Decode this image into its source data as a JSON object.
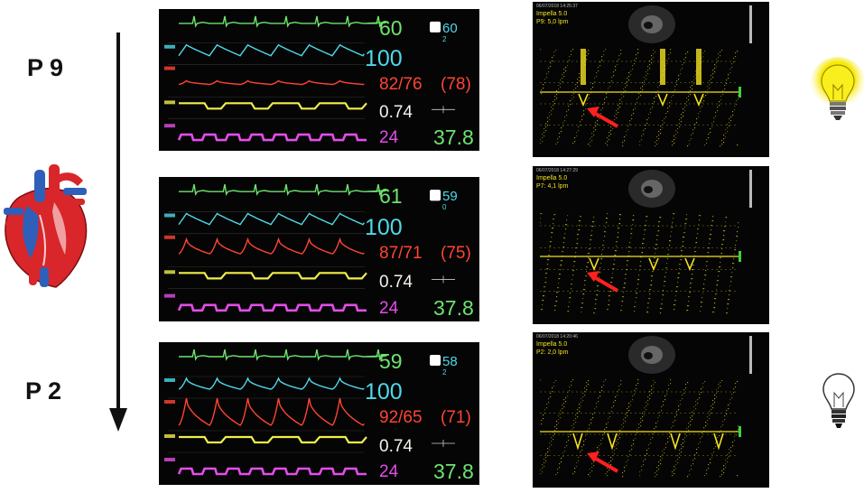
{
  "levels": {
    "top": "P 9",
    "bottom": "P 2"
  },
  "icons": {
    "heart": "heart-anatomy-icon",
    "bulb_on": "lightbulb-on-icon",
    "bulb_off": "lightbulb-off-icon",
    "arrow": "arrow-down-icon"
  },
  "colors": {
    "ecg": "#6ee36e",
    "pleth": "#4fd8e8",
    "abp": "#ff4433",
    "tv": "#f2ee4a",
    "resp": "#e24ee8",
    "doppler": "#f2e21f",
    "pointer": "#ff2020"
  },
  "panels": [
    {
      "monitor": {
        "hr": "60",
        "pulse": "60",
        "spo2": "100",
        "abp": "82/76",
        "abp_mean": "(78)",
        "tv": "0.74",
        "rr": "24",
        "tcore": "37.8",
        "ves": "2"
      },
      "echo": {
        "timestamp": "06/07/2018 14:25:37",
        "device": "Impella 5.0",
        "setting": "P9: 5,0 lpm"
      }
    },
    {
      "monitor": {
        "hr": "61",
        "pulse": "59",
        "spo2": "100",
        "abp": "87/71",
        "abp_mean": "(75)",
        "tv": "0.74",
        "rr": "24",
        "tcore": "37.8",
        "ves": "0"
      },
      "echo": {
        "timestamp": "06/07/2018 14:27:29",
        "device": "Impella 5.0",
        "setting": "P7: 4,1 lpm"
      }
    },
    {
      "monitor": {
        "hr": "59",
        "pulse": "58",
        "spo2": "100",
        "abp": "92/65",
        "abp_mean": "(71)",
        "tv": "0.74",
        "rr": "24",
        "tcore": "37.8",
        "ves": "2"
      },
      "echo": {
        "timestamp": "06/07/2018 14:20:46",
        "device": "Impella 5.0",
        "setting": "P2: 2,0 lpm"
      }
    }
  ]
}
